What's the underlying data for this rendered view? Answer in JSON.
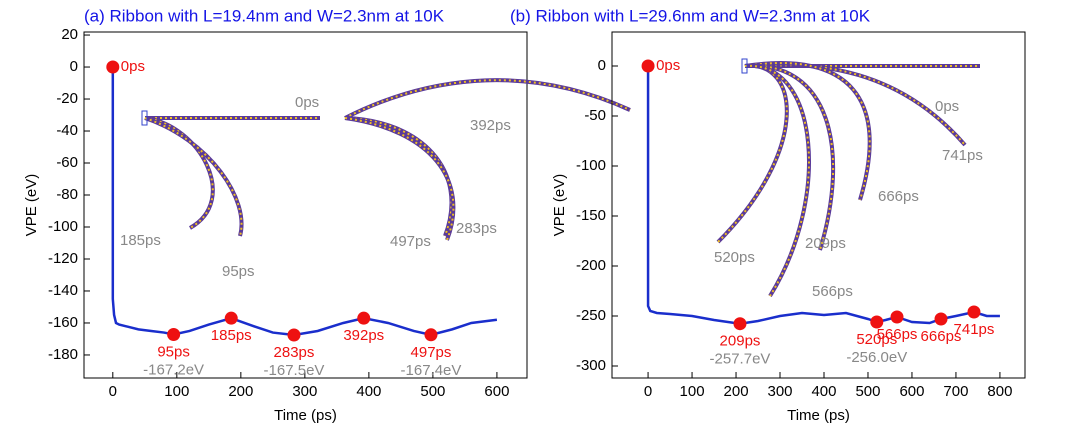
{
  "chart_data": [
    {
      "type": "line",
      "title": "(a) Ribbon with L=19.4nm and W=2.3nm at 10K",
      "xlabel": "Time (ps)",
      "ylabel": "VPE (eV)",
      "xlim": [
        -45,
        647
      ],
      "ylim": [
        -194.4,
        21.9
      ],
      "xticks": [
        0,
        100,
        200,
        300,
        400,
        500,
        600
      ],
      "yticks": [
        20,
        0,
        -20,
        -40,
        -60,
        -80,
        -100,
        -120,
        -140,
        -160,
        -180
      ],
      "series": [
        {
          "color": "#1a2ecc",
          "x": [
            0,
            0,
            2,
            5,
            10,
            20,
            40,
            60,
            80,
            95,
            120,
            150,
            185,
            220,
            250,
            283,
            320,
            360,
            392,
            430,
            470,
            497,
            530,
            560,
            600
          ],
          "values": [
            0,
            -145,
            -155,
            -160,
            -161,
            -162,
            -164,
            -165,
            -166,
            -167.2,
            -165,
            -161,
            -157,
            -162,
            -166,
            -167.5,
            -165,
            -160,
            -157,
            -160,
            -165,
            -167.4,
            -164,
            -160,
            -158
          ]
        },
        {
          "color": "#ee1111",
          "x": [
            0,
            95,
            185,
            283,
            392,
            497
          ],
          "values": [
            0,
            -167.2,
            -157,
            -167.5,
            -157,
            -167.4
          ],
          "x_labels": [
            "0ps",
            "95ps",
            "185ps",
            "283ps",
            "392ps",
            "497ps"
          ],
          "value_labels": [
            null,
            "-167.2eV",
            null,
            "-167.5eV",
            null,
            "-167.4eV"
          ]
        }
      ],
      "annotations": [
        "0ps",
        "185ps",
        "95ps",
        "392ps",
        "497ps",
        "283ps"
      ]
    },
    {
      "type": "line",
      "title": "(b) Ribbon with L=29.6nm and W=2.3nm at 10K",
      "xlabel": "Time (ps)",
      "ylabel": "VPE (eV)",
      "xlim": [
        -82,
        857
      ],
      "ylim": [
        -312,
        34
      ],
      "xticks": [
        0,
        100,
        200,
        300,
        400,
        500,
        600,
        700,
        800
      ],
      "yticks": [
        0,
        -50,
        -100,
        -150,
        -200,
        -250,
        -300
      ],
      "series": [
        {
          "color": "#1a2ecc",
          "x": [
            0,
            0,
            5,
            20,
            50,
            100,
            150,
            209,
            250,
            300,
            350,
            400,
            450,
            500,
            520,
            540,
            566,
            600,
            640,
            666,
            700,
            741,
            770,
            800
          ],
          "values": [
            0,
            -240,
            -245,
            -247,
            -248,
            -250,
            -254,
            -257.7,
            -255,
            -250,
            -247,
            -249,
            -247,
            -253,
            -256,
            -254,
            -251,
            -256,
            -257,
            -253,
            -250,
            -246,
            -250,
            -250
          ]
        },
        {
          "color": "#ee1111",
          "x": [
            0,
            209,
            520,
            566,
            666,
            741
          ],
          "values": [
            0,
            -257.7,
            -256.0,
            -251,
            -253,
            -246
          ],
          "x_labels": [
            "0ps",
            "209ps",
            "520ps",
            "566ps",
            "666ps",
            "741ps"
          ],
          "value_labels": [
            null,
            "-257.7eV",
            "-256.0eV",
            null,
            null,
            null
          ]
        }
      ],
      "annotations": [
        "0ps",
        "741ps",
        "666ps",
        "209ps",
        "520ps",
        "566ps"
      ]
    }
  ]
}
